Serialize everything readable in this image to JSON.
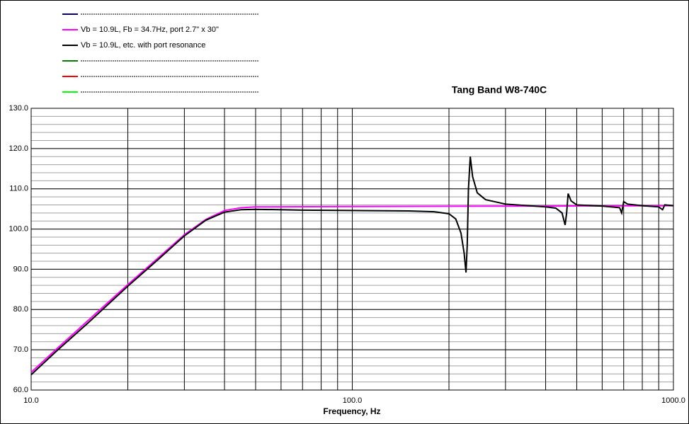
{
  "chart_data": {
    "type": "line",
    "title": "Tang Band W8-740C",
    "xlabel": "Frequency, Hz",
    "xscale": "log",
    "grid": true,
    "minor_grid": true,
    "xlim": [
      10,
      1000
    ],
    "xticks": [
      {
        "value": 10,
        "label": "10.0"
      },
      {
        "value": 100,
        "label": "100.0"
      },
      {
        "value": 1000,
        "label": "1000.0"
      }
    ],
    "ylim": [
      60,
      130
    ],
    "yticks": [
      {
        "value": 60,
        "label": "60.0"
      },
      {
        "value": 70,
        "label": "70.0"
      },
      {
        "value": 80,
        "label": "80.0"
      },
      {
        "value": 90,
        "label": "90.0"
      },
      {
        "value": 100,
        "label": "100.0"
      },
      {
        "value": 110,
        "label": "110.0"
      },
      {
        "value": 120,
        "label": "120.0"
      },
      {
        "value": 130,
        "label": "130.0"
      }
    ],
    "series": [
      {
        "name": null,
        "color": "#000080",
        "x": null,
        "values": null
      },
      {
        "name": "Vb = 10.9L, Fb = 34.7Hz, port 2.7\" x 30\"",
        "color": "#ff00ff",
        "x": [
          10,
          12,
          15,
          20,
          25,
          30,
          35,
          40,
          45,
          50,
          100,
          1000
        ],
        "values": [
          64.4,
          70.2,
          77.2,
          86.2,
          93,
          98.6,
          102.4,
          104.6,
          105.3,
          105.5,
          105.6,
          105.8
        ]
      },
      {
        "name": "Vb = 10.9L, etc. with port resonance",
        "color": "#000000",
        "x": [
          10,
          12,
          15,
          20,
          25,
          30,
          35,
          40,
          45,
          50,
          70,
          100,
          150,
          180,
          200,
          210,
          218,
          223,
          226,
          228,
          230,
          233,
          237,
          245,
          260,
          300,
          400,
          430,
          450,
          460,
          465,
          470,
          480,
          500,
          600,
          680,
          690,
          700,
          720,
          800,
          900,
          925,
          940,
          1000
        ],
        "values": [
          63.8,
          69.7,
          76.6,
          85.8,
          92.6,
          98.3,
          102.2,
          104.2,
          104.8,
          104.9,
          104.7,
          104.6,
          104.5,
          104.3,
          103.8,
          102.5,
          99,
          94,
          89.2,
          96,
          110,
          118,
          113,
          109,
          107.3,
          106.2,
          105.5,
          105.2,
          104,
          101,
          104,
          108.8,
          107,
          106,
          105.7,
          105.3,
          104,
          106.8,
          106.2,
          105.8,
          105.5,
          104.8,
          106,
          105.8
        ]
      },
      {
        "name": null,
        "color": "#008000",
        "x": null,
        "values": null
      },
      {
        "name": null,
        "color": "#ff0000",
        "x": null,
        "values": null
      },
      {
        "name": null,
        "color": "#00ff00",
        "x": null,
        "values": null
      }
    ]
  }
}
